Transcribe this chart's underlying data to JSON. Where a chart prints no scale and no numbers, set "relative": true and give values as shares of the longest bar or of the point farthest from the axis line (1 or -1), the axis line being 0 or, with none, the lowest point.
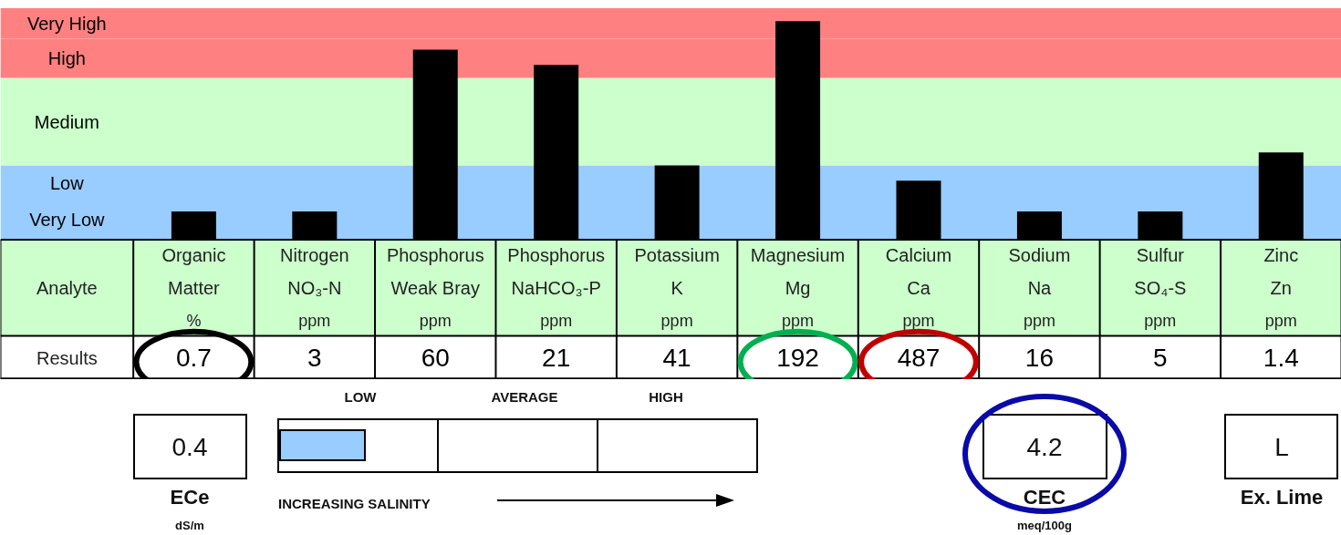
{
  "chart_data": [
    {
      "type": "bar",
      "relative": true,
      "categories": [
        "Organic\nMatter\n%",
        "Nitrogen\nNO₃-N\nppm",
        "Phosphorus\nWeak Bray\nppm",
        "Phosphorus\nNaHCO₃-P\nppm",
        "Potassium\nK\nppm",
        "Magnesium\nMg\nppm",
        "Calcium\nCa\nppm",
        "Sodium\nNa\nppm",
        "Sulfur\nSO₄-S\nppm",
        "Zinc\nZn\nppm"
      ],
      "values": [
        0.13,
        0.13,
        0.87,
        0.8,
        0.34,
        1.0,
        0.27,
        0.13,
        0.13,
        0.4
      ],
      "color": "#000000",
      "bands": [
        {
          "axis": "y",
          "from": 0,
          "to": 0.18,
          "label": "Very Low",
          "color": "#99ccff"
        },
        {
          "axis": "y",
          "from": 0.18,
          "to": 0.34,
          "label": "Low",
          "color": "#99ccff"
        },
        {
          "axis": "y",
          "from": 0.34,
          "to": 0.74,
          "label": "Medium",
          "color": "#ccffcc"
        },
        {
          "axis": "y",
          "from": 0.74,
          "to": 0.92,
          "label": "High",
          "color": "#ff8080"
        },
        {
          "axis": "y",
          "from": 0.92,
          "to": 1.06,
          "label": "Very High",
          "color": "#ff8080"
        }
      ],
      "annotations": [
        "Analyte",
        "Results",
        "0.7",
        "3",
        "60",
        "21",
        "41",
        "192",
        "487",
        "16",
        "5",
        "1.4"
      ],
      "grid": false
    },
    {
      "type": "other",
      "annotations": [
        "0.4",
        "ECe",
        "dS/m",
        "LOW",
        "AVERAGE",
        "HIGH",
        "INCREASING SALINITY",
        "4.2",
        "CEC",
        "meq/100g",
        "L",
        "Ex. Lime"
      ]
    }
  ]
}
